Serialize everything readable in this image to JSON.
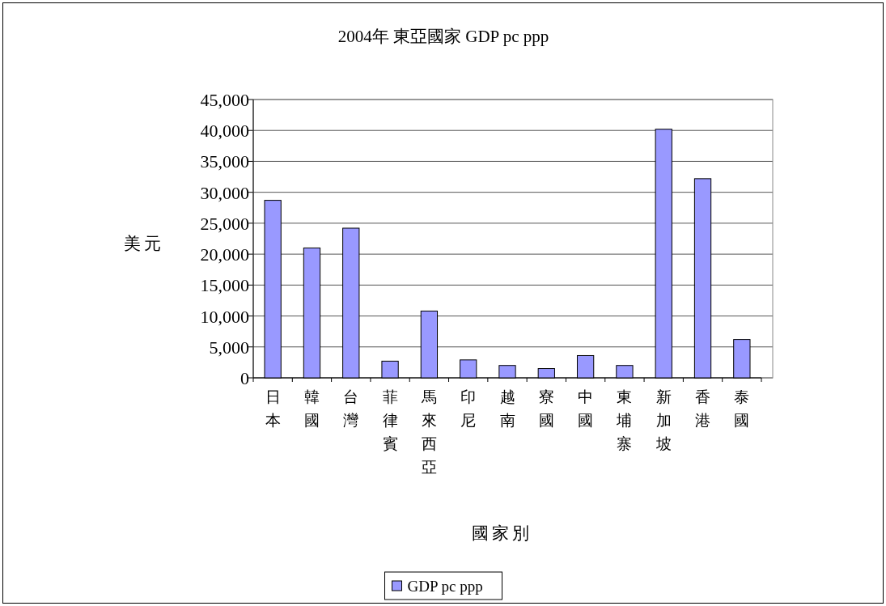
{
  "chart_data": {
    "type": "bar",
    "title": "2004年  東亞國家  GDP pc ppp",
    "xlabel": "國家別",
    "ylabel": "美元",
    "categories": [
      "日本",
      "韓國",
      "台灣",
      "菲律賓",
      "馬來西亞",
      "印尼",
      "越南",
      "寮國",
      "中國",
      "東埔寨",
      "新加坡",
      "香港",
      "泰國"
    ],
    "series": [
      {
        "name": "GDP pc ppp",
        "color": "#9999ff",
        "values": [
          28700,
          21000,
          24200,
          2700,
          10800,
          2900,
          2000,
          1500,
          3600,
          2000,
          40200,
          32200,
          6200
        ]
      }
    ],
    "ylim": [
      0,
      45000
    ],
    "yticks": [
      {
        "value": 0,
        "label": "0"
      },
      {
        "value": 5000,
        "label": "5,000"
      },
      {
        "value": 10000,
        "label": "10,000"
      },
      {
        "value": 15000,
        "label": "15,000"
      },
      {
        "value": 20000,
        "label": "20,000"
      },
      {
        "value": 25000,
        "label": "25,000"
      },
      {
        "value": 30000,
        "label": "30,000"
      },
      {
        "value": 35000,
        "label": "35,000"
      },
      {
        "value": 40000,
        "label": "40,000"
      },
      {
        "value": 45000,
        "label": "45,000"
      }
    ],
    "grid": "y",
    "legend": "bottom"
  }
}
